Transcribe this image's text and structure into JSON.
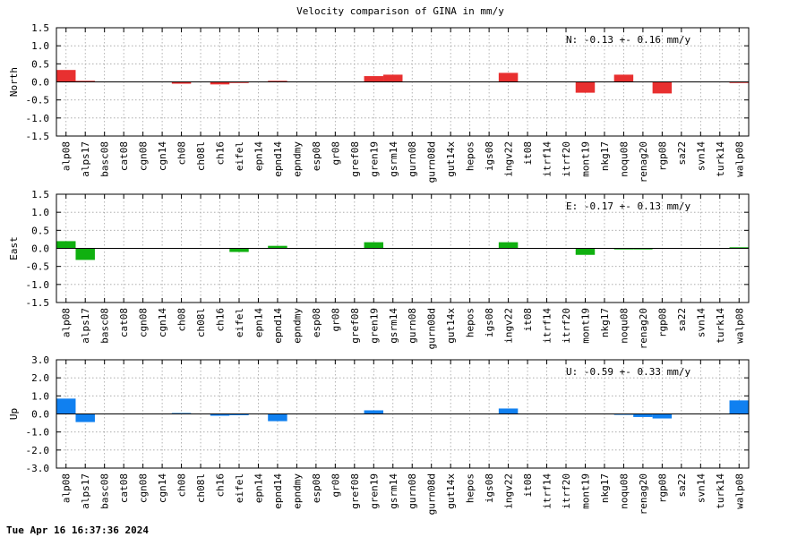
{
  "title": "Velocity comparison of GINA in mm/y",
  "timestamp": "Tue Apr 16 16:37:36 2024",
  "categories": [
    "alp08",
    "alps17",
    "basc08",
    "cat08",
    "cgn08",
    "cgn14",
    "ch08",
    "ch08l",
    "ch16",
    "eifel",
    "epn14",
    "epnd14",
    "epndmy",
    "esp08",
    "gr08",
    "gref08",
    "gren19",
    "gsrm14",
    "gurn08",
    "gurn08d",
    "gut14x",
    "hepos",
    "igs08",
    "ingv22",
    "it08",
    "itrf14",
    "itrf20",
    "mont19",
    "nkg17",
    "noqu08",
    "renag20",
    "rgp08",
    "sa22",
    "svn14",
    "turk14",
    "walp08"
  ],
  "chart_data": [
    {
      "type": "bar",
      "ylabel": "North",
      "ylim": [
        -1.5,
        1.5
      ],
      "yticks": [
        "-1.5",
        "-1.0",
        "-0.5",
        "0.0",
        "0.5",
        "1.0",
        "1.5"
      ],
      "grid": true,
      "color": "#e83030",
      "annotation": "N:  -0.13 +-  0.16 mm/y",
      "values": [
        0.33,
        0.03,
        0,
        0,
        0,
        0,
        -0.05,
        0,
        -0.07,
        -0.03,
        0,
        0.03,
        0,
        0,
        0,
        0,
        0.16,
        0.2,
        0,
        0,
        0,
        0,
        0,
        0.25,
        0,
        0,
        0,
        -0.3,
        0,
        0.2,
        0,
        -0.32,
        0,
        0,
        0,
        -0.03
      ]
    },
    {
      "type": "bar",
      "ylabel": "East",
      "ylim": [
        -1.5,
        1.5
      ],
      "yticks": [
        "-1.5",
        "-1.0",
        "-0.5",
        "0.0",
        "0.5",
        "1.0",
        "1.5"
      ],
      "grid": true,
      "color": "#10b010",
      "annotation": "E:  -0.17 +-  0.13 mm/y",
      "values": [
        0.2,
        -0.32,
        0,
        0,
        0,
        0,
        0,
        0,
        0,
        -0.1,
        0,
        0.07,
        0,
        0,
        0,
        0,
        0.17,
        0,
        0,
        0,
        0,
        0,
        0,
        0.17,
        0,
        0,
        0,
        -0.18,
        0,
        -0.03,
        -0.03,
        0,
        0,
        0,
        0,
        0.03
      ]
    },
    {
      "type": "bar",
      "ylabel": "Up",
      "ylim": [
        -3.0,
        3.0
      ],
      "yticks": [
        "-3.0",
        "-2.0",
        "-1.0",
        "0.0",
        "1.0",
        "2.0",
        "3.0"
      ],
      "grid": true,
      "color": "#1080f0",
      "annotation": "U:  -0.59 +-  0.33 mm/y",
      "values": [
        0.85,
        -0.45,
        0,
        0,
        0,
        0,
        0.05,
        0,
        -0.1,
        -0.07,
        0,
        -0.4,
        0,
        0,
        0,
        0,
        0.2,
        0,
        0,
        0,
        0,
        0,
        0,
        0.3,
        0,
        0,
        0,
        0,
        0,
        -0.05,
        -0.17,
        -0.25,
        0,
        0,
        0,
        0.75
      ]
    }
  ]
}
